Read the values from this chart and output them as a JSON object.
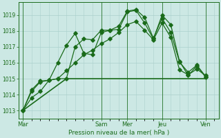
{
  "bg_color": "#cce8e4",
  "grid_color": "#aad0cc",
  "line_color": "#1a6b1a",
  "title": "Pression niveau de la mer( hPa )",
  "ylim": [
    1012.5,
    1019.8
  ],
  "yticks": [
    1013,
    1014,
    1015,
    1016,
    1017,
    1018,
    1019
  ],
  "day_labels": [
    "Mar",
    "Sam",
    "Mer",
    "Jeu",
    "Ven"
  ],
  "day_positions": [
    0,
    9,
    12,
    16,
    21
  ],
  "xlim": [
    -0.5,
    22.5
  ],
  "line1_x": [
    0,
    1,
    2,
    3,
    4,
    5,
    6,
    7,
    8,
    9,
    10,
    11,
    12,
    13,
    14,
    15,
    16,
    17,
    18,
    19,
    20,
    21
  ],
  "line1_y": [
    1013.0,
    1014.3,
    1014.85,
    1014.9,
    1016.0,
    1017.1,
    1017.85,
    1016.6,
    1016.5,
    1017.9,
    1018.05,
    1018.1,
    1019.2,
    1019.3,
    1018.5,
    1017.5,
    1019.0,
    1018.4,
    1016.1,
    1015.2,
    1015.8,
    1015.1
  ],
  "line2_x": [
    0,
    1,
    2,
    3,
    4,
    5,
    6,
    7,
    8,
    9,
    10,
    11,
    12,
    13,
    14,
    15,
    16,
    17,
    18,
    19,
    20,
    21
  ],
  "line2_y": [
    1013.0,
    1014.2,
    1014.8,
    1014.9,
    1015.0,
    1015.0,
    1017.0,
    1017.5,
    1017.45,
    1018.05,
    1018.05,
    1018.3,
    1019.25,
    1019.35,
    1018.85,
    1017.55,
    1018.8,
    1017.9,
    1016.05,
    1015.4,
    1015.85,
    1015.15
  ],
  "line3_x": [
    0,
    5,
    9,
    12,
    16,
    21
  ],
  "line3_y": [
    1013.0,
    1015.0,
    1015.0,
    1015.0,
    1015.0,
    1015.0
  ],
  "line4_x": [
    0,
    1,
    2,
    3,
    4,
    5,
    6,
    7,
    8,
    9,
    10,
    11,
    12,
    13,
    14,
    15,
    16,
    17,
    18,
    19,
    20,
    21
  ],
  "line4_y": [
    1013.0,
    1013.8,
    1014.2,
    1014.9,
    1015.0,
    1015.5,
    1016.0,
    1016.5,
    1016.8,
    1017.2,
    1017.5,
    1017.9,
    1018.4,
    1018.6,
    1018.05,
    1017.45,
    1018.5,
    1017.6,
    1015.55,
    1015.25,
    1015.6,
    1015.2
  ]
}
